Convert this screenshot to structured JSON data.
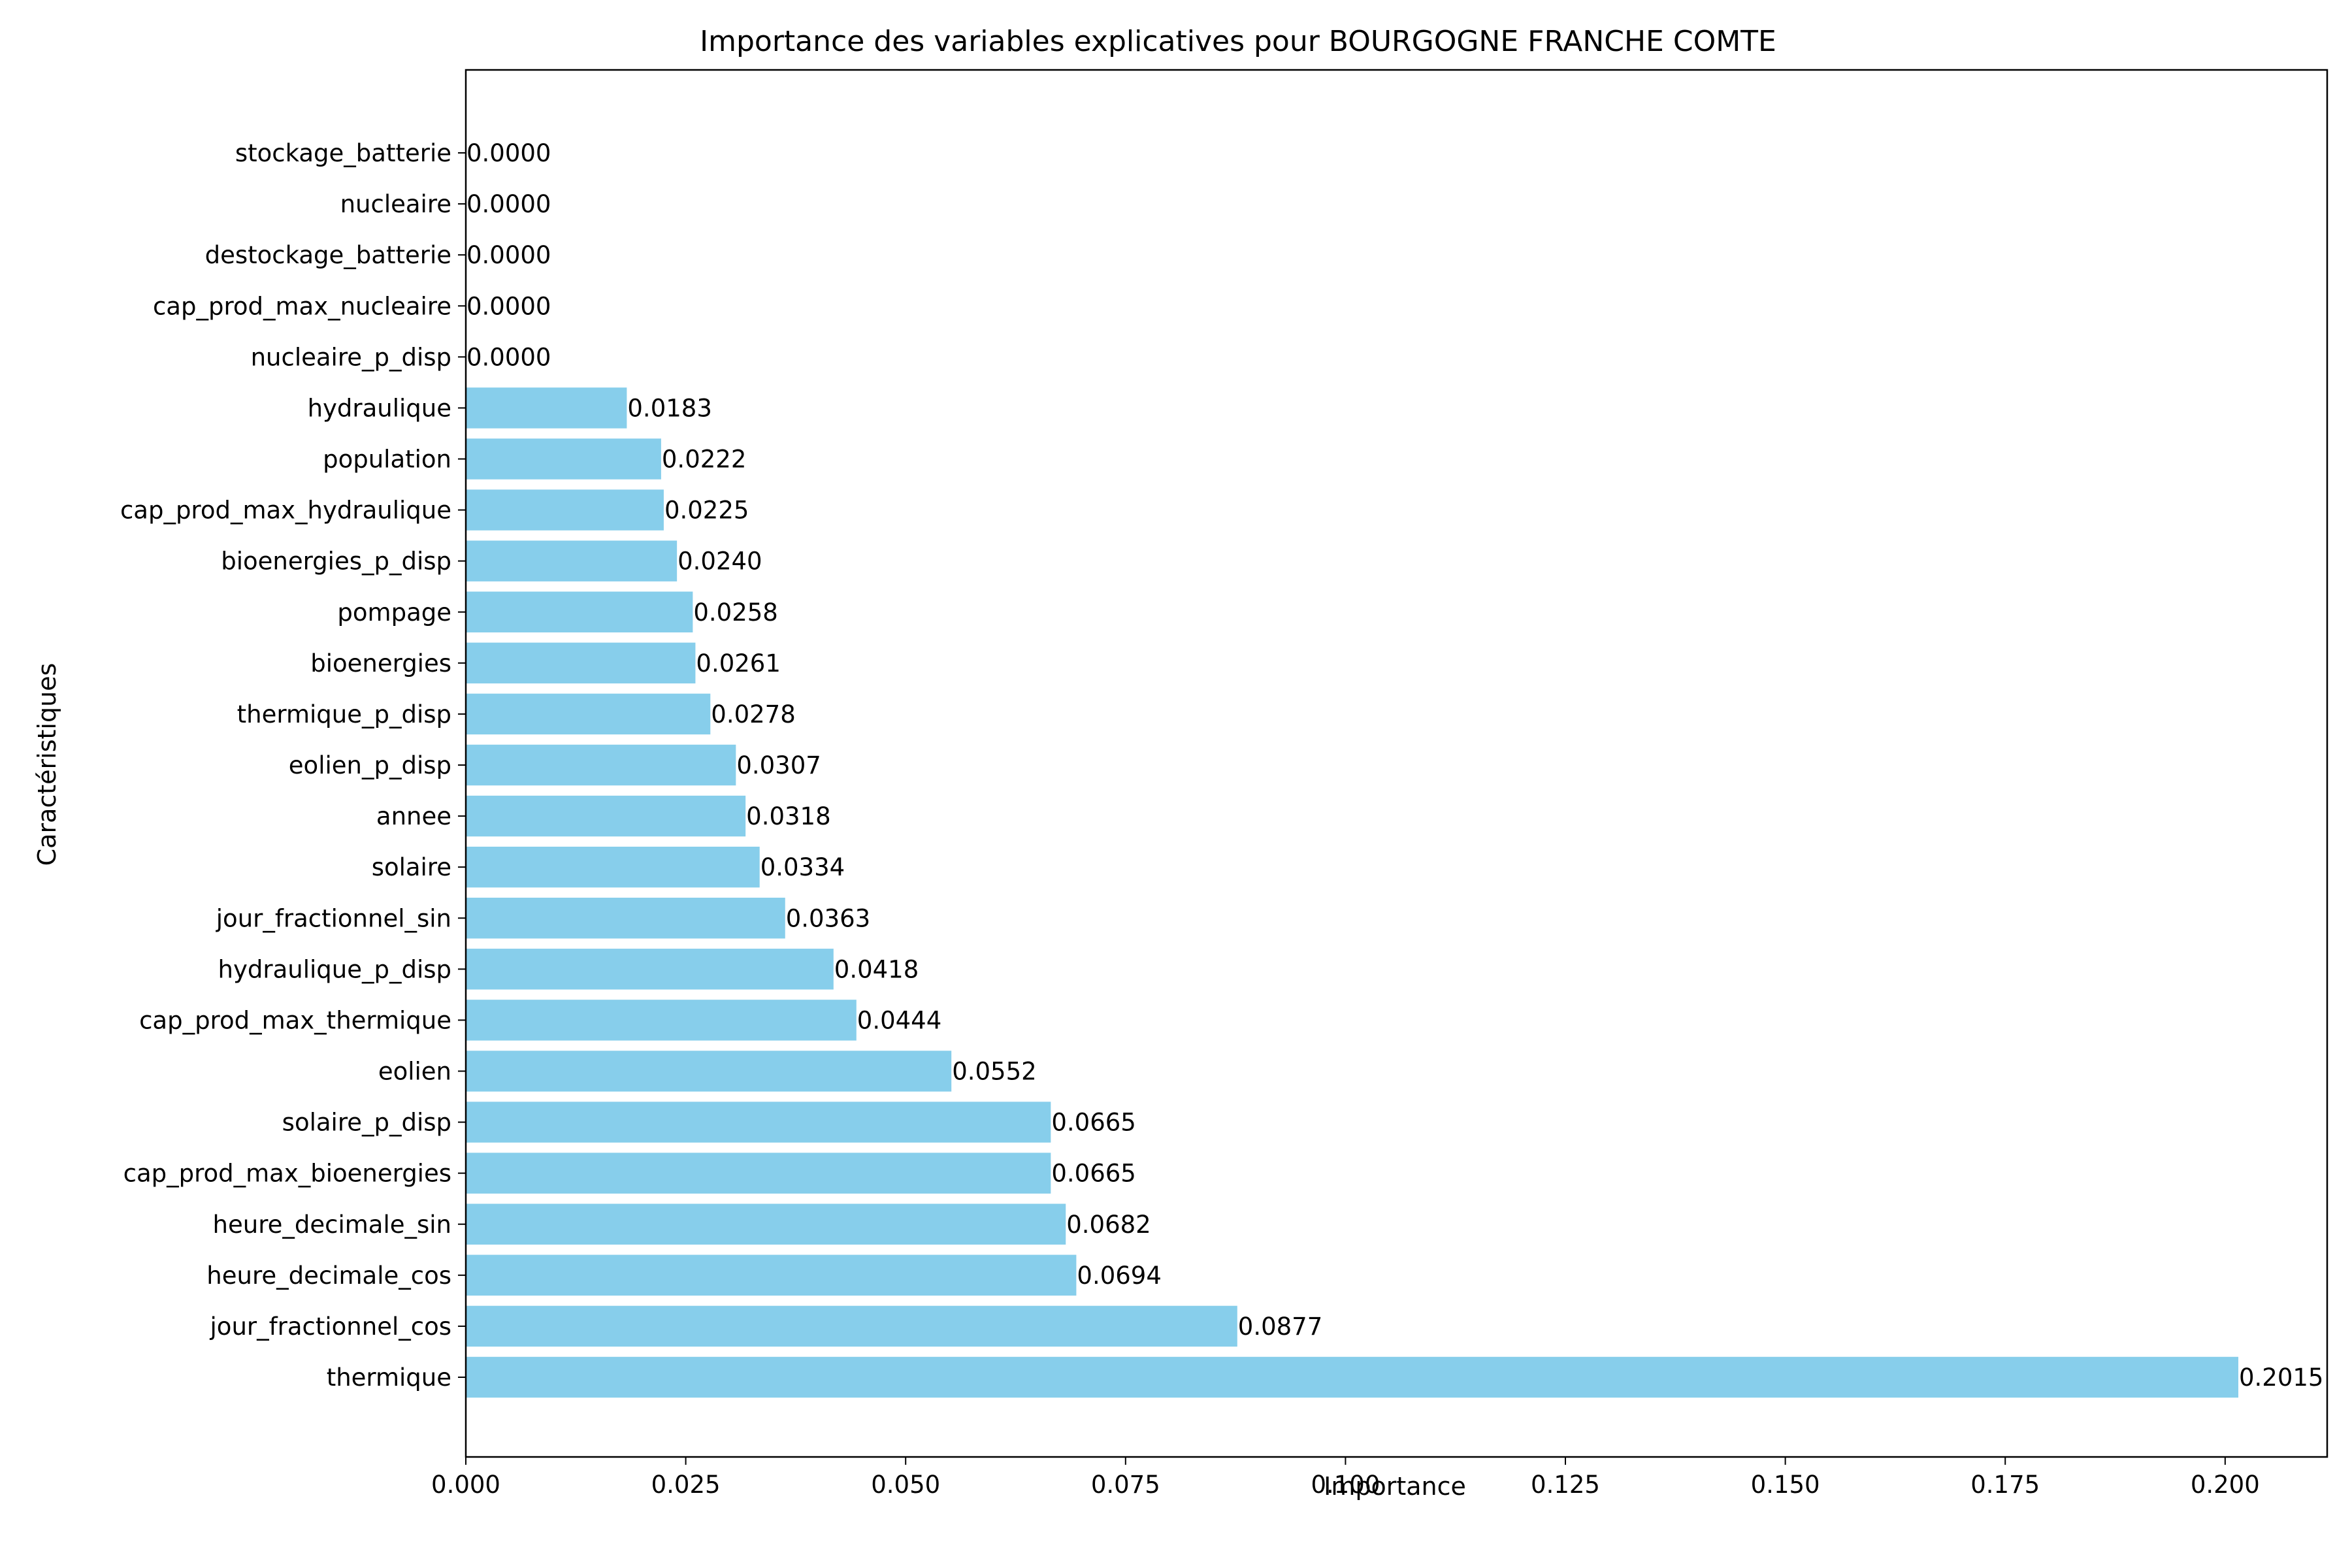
{
  "chart_data": {
    "type": "bar",
    "orientation": "horizontal",
    "title": "Importance des variables explicatives pour BOURGOGNE FRANCHE COMTE",
    "xlabel": "Importance",
    "ylabel": "Caractéristiques",
    "bar_color": "#87ceeb",
    "xlim": [
      0,
      0.2116
    ],
    "xticks": [
      0.0,
      0.025,
      0.05,
      0.075,
      0.1,
      0.125,
      0.15,
      0.175,
      0.2
    ],
    "xtick_labels": [
      "0.000",
      "0.025",
      "0.050",
      "0.075",
      "0.100",
      "0.125",
      "0.150",
      "0.175",
      "0.200"
    ],
    "grid": false,
    "categories": [
      "thermique",
      "jour_fractionnel_cos",
      "heure_decimale_cos",
      "heure_decimale_sin",
      "cap_prod_max_bioenergies",
      "solaire_p_disp",
      "eolien",
      "cap_prod_max_thermique",
      "hydraulique_p_disp",
      "jour_fractionnel_sin",
      "solaire",
      "annee",
      "eolien_p_disp",
      "thermique_p_disp",
      "bioenergies",
      "pompage",
      "bioenergies_p_disp",
      "cap_prod_max_hydraulique",
      "population",
      "hydraulique",
      "nucleaire_p_disp",
      "cap_prod_max_nucleaire",
      "destockage_batterie",
      "nucleaire",
      "stockage_batterie"
    ],
    "values": [
      0.2015,
      0.0877,
      0.0694,
      0.0682,
      0.0665,
      0.0665,
      0.0552,
      0.0444,
      0.0418,
      0.0363,
      0.0334,
      0.0318,
      0.0307,
      0.0278,
      0.0261,
      0.0258,
      0.024,
      0.0225,
      0.0222,
      0.0183,
      0.0,
      0.0,
      0.0,
      0.0,
      0.0
    ],
    "value_labels": [
      "0.2015",
      "0.0877",
      "0.0694",
      "0.0682",
      "0.0665",
      "0.0665",
      "0.0552",
      "0.0444",
      "0.0418",
      "0.0363",
      "0.0334",
      "0.0318",
      "0.0307",
      "0.0278",
      "0.0261",
      "0.0258",
      "0.0240",
      "0.0225",
      "0.0222",
      "0.0183",
      "0.0000",
      "0.0000",
      "0.0000",
      "0.0000",
      "0.0000"
    ]
  }
}
